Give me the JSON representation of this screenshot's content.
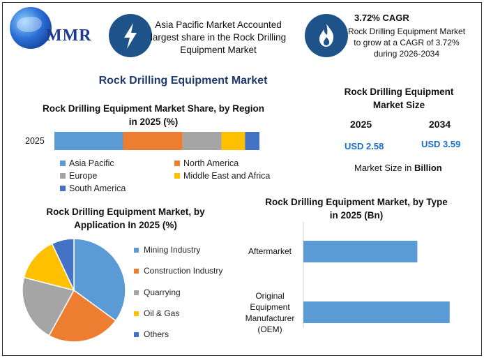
{
  "logo": {
    "text": "MMR"
  },
  "header": {
    "region_text": "Asia Pacific Market Accounted largest share in the Rock Drilling Equipment Market",
    "cagr_title": "3.72% CAGR",
    "cagr_text": "Rock Drilling Equipment Market to grow at a CAGR of 3.72% during 2026-2034",
    "icons": [
      "lightning-icon",
      "flame-icon"
    ]
  },
  "main_title": "Rock Drilling Equipment Market",
  "market_size": {
    "title": "Rock Drilling Equipment Market Size",
    "years": [
      "2025",
      "2034"
    ],
    "values": [
      "USD 2.58",
      "USD 3.59"
    ],
    "note_prefix": "Market Size in ",
    "note_bold": "Billion"
  },
  "colors": {
    "blue": "#5b9bd5",
    "orange": "#ed7d31",
    "gray": "#a5a5a5",
    "yellow": "#ffc000",
    "darkblue": "#4472c4",
    "badge": "#1d5389"
  },
  "chart_data": [
    {
      "type": "bar",
      "orientation": "horizontal-stacked",
      "title": "Rock Drilling Equipment Market Share, by Region in 2025 (%)",
      "categories": [
        "2025"
      ],
      "series": [
        {
          "name": "Asia Pacific",
          "values": [
            33.5
          ]
        },
        {
          "name": "North America",
          "values": [
            29
          ]
        },
        {
          "name": "Europe",
          "values": [
            19
          ]
        },
        {
          "name": "Middle East and Africa",
          "values": [
            11.5
          ]
        },
        {
          "name": "South America",
          "values": [
            7
          ]
        }
      ],
      "legend": "bottom",
      "grid": false
    },
    {
      "type": "pie",
      "title": "Rock Drilling Equipment Market, by Application In 2025 (%)",
      "labels": [
        "Mining Industry",
        "Construction Industry",
        "Quarrying",
        "Oil & Gas",
        "Others"
      ],
      "values": [
        35,
        23,
        21,
        14,
        7
      ],
      "legend": "right"
    },
    {
      "type": "bar",
      "orientation": "horizontal",
      "title": "Rock Drilling Equipment Market, by Type in 2025 (Bn)",
      "categories": [
        "Aftermarket",
        "Original Equipment Manufacturer (OEM)"
      ],
      "category_lines": [
        [
          "Aftermarket"
        ],
        [
          "Original",
          "Equipment",
          "Manufacturer",
          "(OEM)"
        ]
      ],
      "values": [
        1.13,
        1.45
      ],
      "xlim": [
        0,
        1.5
      ],
      "grid": false
    }
  ]
}
